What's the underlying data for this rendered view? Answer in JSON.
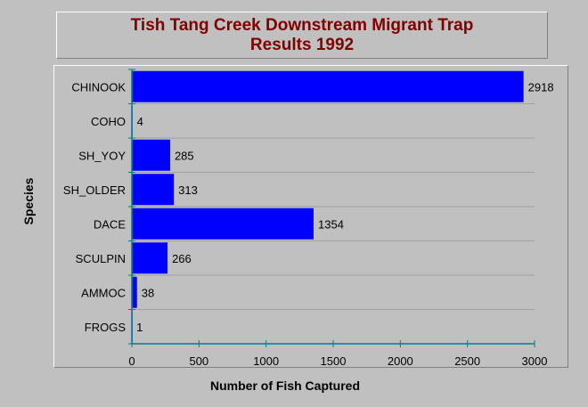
{
  "chart_data": {
    "type": "bar",
    "orientation": "horizontal",
    "title": [
      "Tish Tang Creek Downstream Migrant Trap",
      "Results 1992"
    ],
    "xlabel": "Number of Fish Captured",
    "ylabel": "Species",
    "categories": [
      "CHINOOK",
      "COHO",
      "SH_YOY",
      "SH_OLDER",
      "DACE",
      "SCULPIN",
      "AMMOC",
      "FROGS"
    ],
    "values": [
      2918,
      4,
      285,
      313,
      1354,
      266,
      38,
      1
    ],
    "xlim": [
      0,
      3000
    ],
    "xticks": [
      0,
      500,
      1000,
      1500,
      2000,
      2500,
      3000
    ],
    "grid": true,
    "colors": {
      "bar": "#0000ff",
      "grid": "#a0a0a0",
      "axis": "#008080",
      "title": "#800000",
      "background": "#c0c0c0"
    }
  }
}
